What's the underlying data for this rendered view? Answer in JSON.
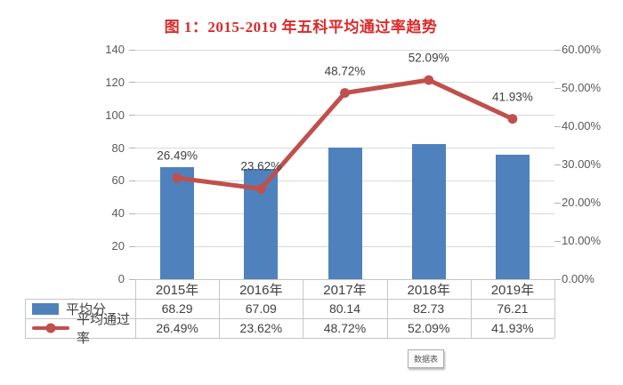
{
  "title": "图 1：2015-2019 年五科平均通过率趋势",
  "chart_data": {
    "type": "bar",
    "subtype": "combo-bar-line-dual-axis",
    "title": "图 1：2015-2019 年五科平均通过率趋势",
    "categories": [
      "2015年",
      "2016年",
      "2017年",
      "2018年",
      "2019年"
    ],
    "series": [
      {
        "name": "平均分",
        "type": "bar",
        "axis": "left",
        "color": "#4f81bd",
        "values": [
          68.29,
          67.09,
          80.14,
          82.73,
          76.21
        ],
        "display": [
          "68.29",
          "67.09",
          "80.14",
          "82.73",
          "76.21"
        ]
      },
      {
        "name": "平均通过率",
        "type": "line",
        "axis": "right",
        "color": "#c0504d",
        "values": [
          26.49,
          23.62,
          48.72,
          52.09,
          41.93
        ],
        "display": [
          "26.49%",
          "23.62%",
          "48.72%",
          "52.09%",
          "41.93%"
        ]
      }
    ],
    "left_axis": {
      "min": 0,
      "max": 140,
      "step": 20,
      "ticks": [
        "140",
        "120",
        "100",
        "80",
        "60",
        "40",
        "20",
        "0"
      ]
    },
    "right_axis": {
      "min": 0,
      "max": 60,
      "step": 10,
      "ticks": [
        "60.00%",
        "50.00%",
        "40.00%",
        "30.00%",
        "20.00%",
        "10.00%",
        "0.00%"
      ]
    },
    "grid": true,
    "data_labels_on_series": "平均通过率",
    "legend_position": "data-table-left",
    "data_table_shown": true
  },
  "footer": {
    "data_table_button": "数据表"
  },
  "colors": {
    "title": "#dc2a2a",
    "bar": "#4f81bd",
    "line": "#c0504d",
    "grid": "#d9d9d9",
    "tick": "#b3b3b3",
    "axis_text": "#595959",
    "table_text": "#404040",
    "table_border": "#c6c6c6"
  }
}
